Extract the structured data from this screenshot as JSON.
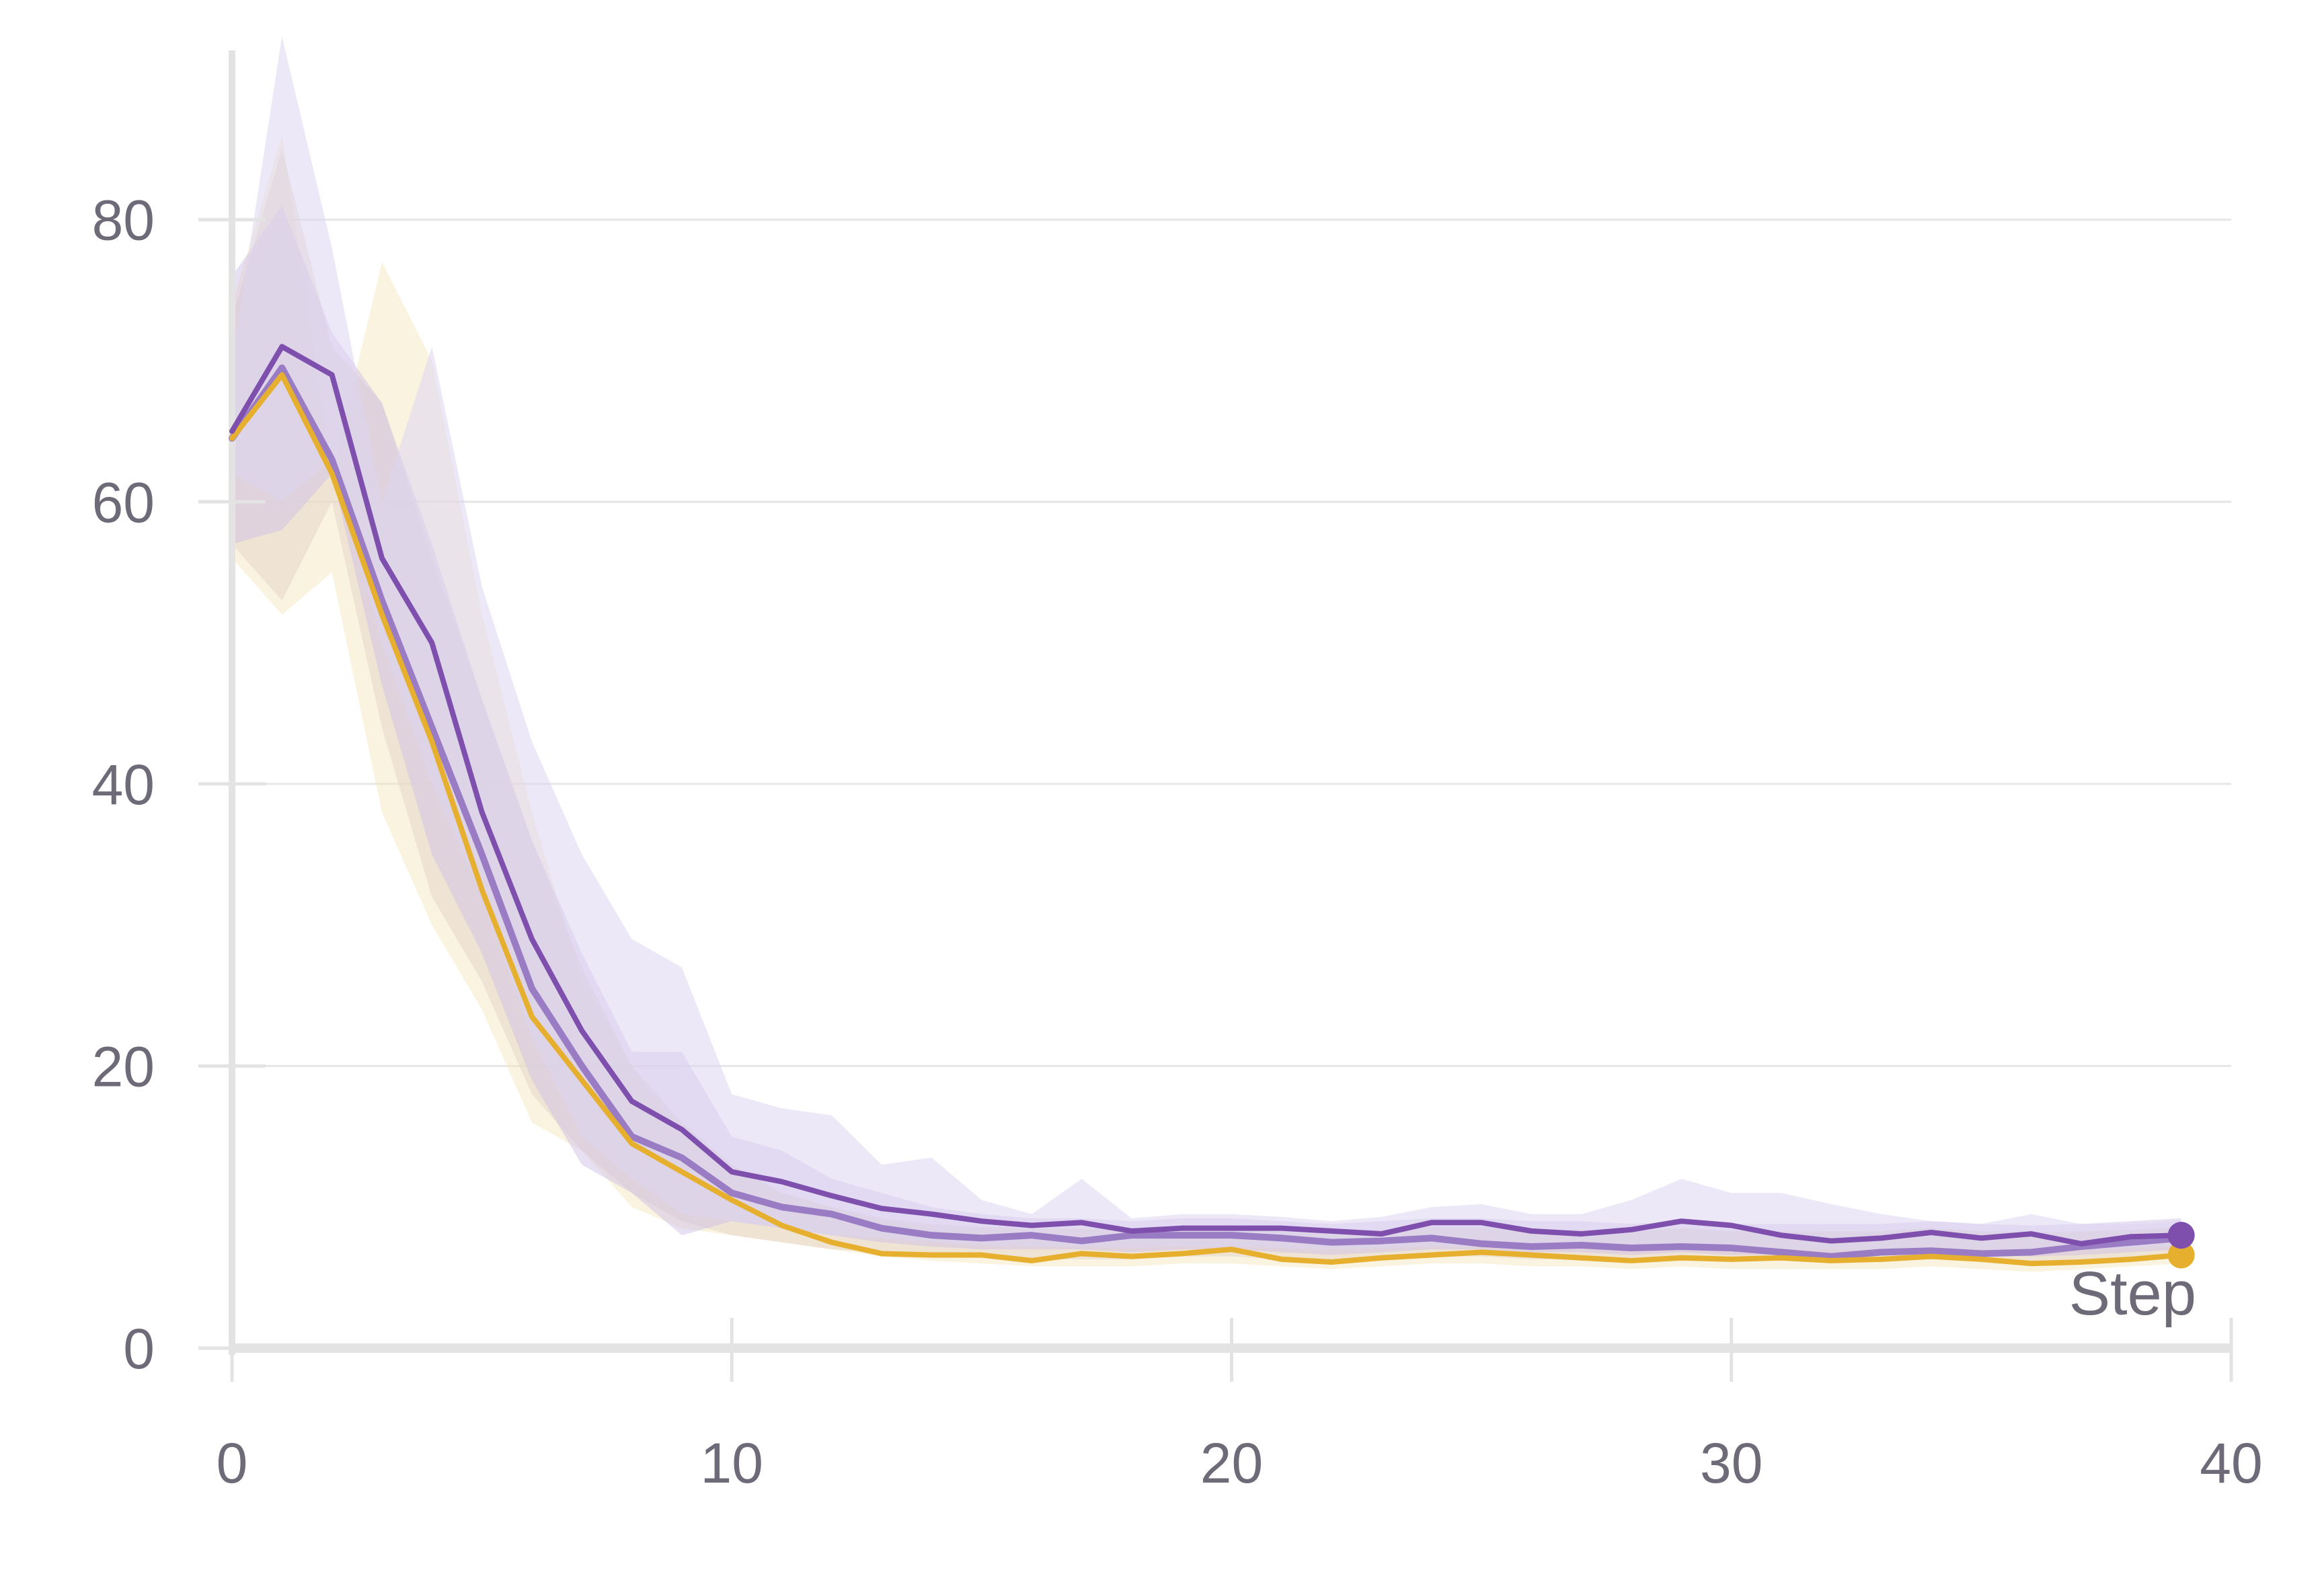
{
  "chart_data": {
    "type": "line",
    "title": "",
    "xlabel": "Step",
    "ylabel": "",
    "xlim": [
      0,
      40
    ],
    "ylim": [
      0,
      92
    ],
    "x_ticks": [
      0,
      10,
      20,
      30,
      40
    ],
    "x_tick_labels": [
      "0",
      "10",
      "20",
      "30",
      "40"
    ],
    "y_ticks": [
      0,
      20,
      40,
      60,
      80
    ],
    "y_tick_labels": [
      "0",
      "20",
      "40",
      "60",
      "80"
    ],
    "grid": {
      "horizontal": true,
      "vertical": false
    },
    "legend": "none",
    "x": [
      0,
      1,
      2,
      3,
      4,
      5,
      6,
      7,
      8,
      9,
      10,
      11,
      12,
      13,
      14,
      15,
      16,
      17,
      18,
      19,
      20,
      21,
      22,
      23,
      24,
      25,
      26,
      27,
      28,
      29,
      30,
      31,
      32,
      33,
      34,
      35,
      36,
      37,
      38,
      39
    ],
    "series": [
      {
        "color": "#f3e5b8",
        "line": false,
        "band": true,
        "band_opacity": 0.45,
        "lower": [
          56,
          52,
          55,
          38,
          30,
          24,
          16,
          14,
          10,
          8.5,
          8,
          7.5,
          7,
          6.5,
          6.2,
          6,
          5.8,
          5.8,
          5.8,
          6,
          6,
          5.8,
          5.6,
          5.8,
          6,
          6,
          5.8,
          5.8,
          5.6,
          5.8,
          5.6,
          5.6,
          5.6,
          5.6,
          5.8,
          5.6,
          5.4,
          5.6,
          5.8,
          6
        ],
        "upper": [
          74,
          86,
          62,
          77,
          70,
          52,
          38,
          26,
          20,
          15,
          13,
          11,
          10,
          9,
          8.5,
          8.5,
          8.2,
          8.5,
          8.2,
          8.5,
          8.5,
          8.2,
          8,
          8.2,
          8.5,
          8.5,
          8.2,
          8.2,
          8.2,
          8.5,
          8.2,
          8.2,
          8.2,
          8.2,
          8.5,
          8.2,
          8,
          8.2,
          8.2,
          8.5
        ]
      },
      {
        "color": "#e8d8cc",
        "line": false,
        "band": true,
        "band_opacity": 0.6,
        "lower": [
          57,
          53,
          60,
          44,
          32,
          26,
          18,
          14,
          11,
          9,
          8,
          7.5,
          7,
          6.8,
          6.5,
          6.5,
          6.3,
          6.3,
          6.3,
          6.5,
          6.5,
          6.3,
          6,
          6.3,
          6.5,
          6.5,
          6.3,
          6.3,
          6.2,
          6.3,
          6.2,
          6.2,
          6.2,
          6.2,
          6.3,
          6.2,
          6,
          6.2,
          6.3,
          6.5
        ],
        "upper": [
          73,
          85,
          71,
          67,
          56,
          46,
          36,
          27,
          20,
          16,
          13,
          11,
          10,
          9.2,
          8.8,
          8.6,
          8.5,
          8.5,
          8.4,
          8.5,
          8.5,
          8.4,
          8.2,
          8.4,
          8.6,
          8.6,
          8.4,
          8.4,
          8.3,
          8.5,
          8.3,
          8.3,
          8.3,
          8.3,
          8.5,
          8.3,
          8.2,
          8.3,
          8.4,
          8.6
        ]
      },
      {
        "color": "#cfc2e8",
        "line": false,
        "band": true,
        "band_opacity": 0.5,
        "lower": [
          57,
          58,
          62,
          47,
          35,
          28,
          19,
          13,
          11,
          8,
          9,
          8.5,
          8,
          7.5,
          7.2,
          7,
          7,
          7,
          6.8,
          7,
          7,
          6.8,
          6.6,
          6.8,
          7,
          7,
          6.8,
          6.8,
          6.6,
          6.8,
          6.6,
          6.6,
          6.6,
          6.6,
          6.8,
          6.6,
          6.5,
          6.6,
          6.8,
          7
        ],
        "upper": [
          76,
          81,
          72,
          67,
          57,
          46,
          36,
          28,
          21,
          21,
          15,
          14,
          12,
          11,
          10,
          9.5,
          9.2,
          9.2,
          9,
          9.2,
          9.2,
          9,
          8.8,
          9,
          9.2,
          9.2,
          9,
          9,
          8.8,
          9,
          8.8,
          8.8,
          8.8,
          8.8,
          9,
          8.8,
          8.7,
          8.8,
          9,
          9.2
        ]
      },
      {
        "color": "#ddd6f0",
        "line": false,
        "band": true,
        "band_opacity": 0.55,
        "lower": [
          62,
          60,
          63,
          50,
          40,
          32,
          22,
          15,
          12,
          9.5,
          9,
          8.5,
          8,
          7.8,
          7.5,
          7.3,
          7.2,
          7.2,
          7.1,
          7.2,
          7.2,
          7.1,
          7,
          7.1,
          7.2,
          7.2,
          7.1,
          7.1,
          7,
          7.1,
          7,
          7,
          7,
          7,
          7.1,
          7,
          6.9,
          7,
          7.1,
          7.2
        ],
        "upper": [
          70,
          93,
          78,
          60,
          71,
          54,
          43,
          35,
          29,
          27,
          18,
          17,
          16.5,
          13,
          13.5,
          10.5,
          9.5,
          12,
          9.2,
          9.5,
          9.5,
          9.3,
          9,
          9.3,
          10,
          10.2,
          9.5,
          9.5,
          10.5,
          12,
          11,
          11,
          10.2,
          9.5,
          9,
          8.8,
          9.5,
          8.8,
          8.8,
          9
        ]
      },
      {
        "color": "#9a7cc4",
        "line": true,
        "band": false,
        "width": 10,
        "endpoint": false,
        "values": [
          64.5,
          69.5,
          63,
          53,
          44,
          35,
          25.5,
          20,
          15,
          13.5,
          11,
          10,
          9.5,
          8.5,
          8,
          7.8,
          8,
          7.6,
          8,
          8,
          8,
          7.8,
          7.5,
          7.6,
          7.8,
          7.4,
          7.2,
          7.3,
          7.1,
          7.2,
          7.1,
          6.8,
          6.5,
          6.8,
          6.9,
          6.7,
          6.8,
          7.2,
          7.5,
          7.8
        ]
      },
      {
        "color": "#e6b02e",
        "line": true,
        "band": false,
        "width": 8,
        "endpoint": true,
        "values": [
          64.5,
          69,
          62,
          52,
          43,
          32.5,
          23.5,
          19,
          14.5,
          12.5,
          10.5,
          8.7,
          7.5,
          6.7,
          6.6,
          6.6,
          6.2,
          6.7,
          6.5,
          6.7,
          7,
          6.3,
          6.1,
          6.4,
          6.6,
          6.8,
          6.6,
          6.4,
          6.2,
          6.4,
          6.3,
          6.4,
          6.2,
          6.3,
          6.5,
          6.3,
          6,
          6.1,
          6.3,
          6.6
        ]
      },
      {
        "color": "#7f4fae",
        "line": true,
        "band": false,
        "width": 8,
        "endpoint": true,
        "values": [
          65,
          71,
          69,
          56,
          50,
          38,
          29,
          22.5,
          17.5,
          15.5,
          12.5,
          11.8,
          10.8,
          9.9,
          9.5,
          9,
          8.7,
          8.9,
          8.3,
          8.5,
          8.5,
          8.5,
          8.3,
          8.1,
          8.9,
          8.9,
          8.3,
          8.1,
          8.4,
          9,
          8.7,
          8,
          7.6,
          7.8,
          8.2,
          7.8,
          8.1,
          7.4,
          7.9,
          8
        ]
      }
    ]
  }
}
